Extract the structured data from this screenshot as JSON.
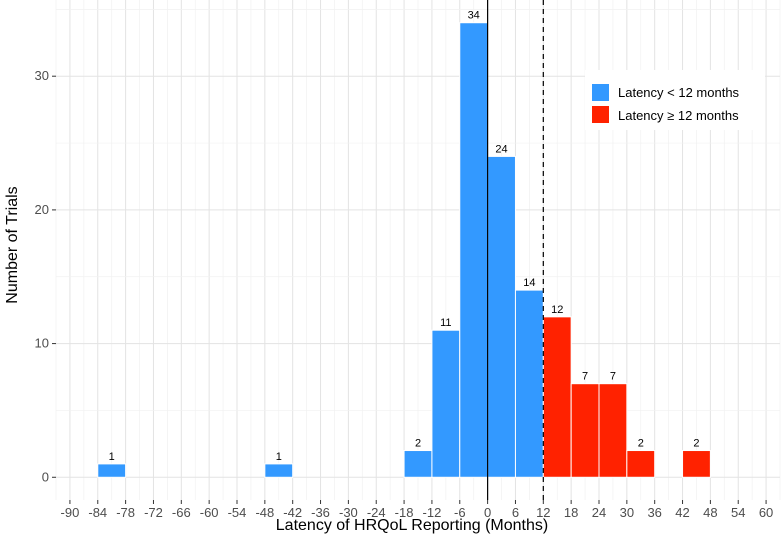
{
  "chart_data": {
    "type": "bar",
    "title": "",
    "xlabel": "Latency of HRQoL Reporting (Months)",
    "ylabel": "Number of Trials",
    "xlim": [
      -93,
      63
    ],
    "ylim": [
      -1.7,
      35.7
    ],
    "x_ticks": [
      -90,
      -84,
      -78,
      -72,
      -66,
      -60,
      -54,
      -48,
      -42,
      -36,
      -30,
      -24,
      -18,
      -12,
      -6,
      0,
      6,
      12,
      18,
      24,
      30,
      36,
      42,
      48,
      54,
      60
    ],
    "y_ticks": [
      0,
      10,
      20,
      30
    ],
    "bin_width": 6,
    "reference_lines": [
      {
        "x": 0,
        "style": "solid"
      },
      {
        "x": 12,
        "style": "dashed"
      }
    ],
    "grid": true,
    "legend_position": "top-right",
    "series": [
      {
        "name": "Latency < 12 months",
        "color": "#3399ff",
        "bins": [
          {
            "x0": -84,
            "x1": -78,
            "count": 1
          },
          {
            "x0": -48,
            "x1": -42,
            "count": 1
          },
          {
            "x0": -18,
            "x1": -12,
            "count": 2
          },
          {
            "x0": -12,
            "x1": -6,
            "count": 11
          },
          {
            "x0": -6,
            "x1": 0,
            "count": 34
          },
          {
            "x0": 0,
            "x1": 6,
            "count": 24
          },
          {
            "x0": 6,
            "x1": 12,
            "count": 14
          }
        ]
      },
      {
        "name": "Latency ≥ 12 months",
        "color": "#ff2200",
        "bins": [
          {
            "x0": 12,
            "x1": 18,
            "count": 12
          },
          {
            "x0": 18,
            "x1": 24,
            "count": 7
          },
          {
            "x0": 24,
            "x1": 30,
            "count": 7
          },
          {
            "x0": 30,
            "x1": 36,
            "count": 2
          },
          {
            "x0": 42,
            "x1": 48,
            "count": 2
          }
        ]
      }
    ]
  }
}
